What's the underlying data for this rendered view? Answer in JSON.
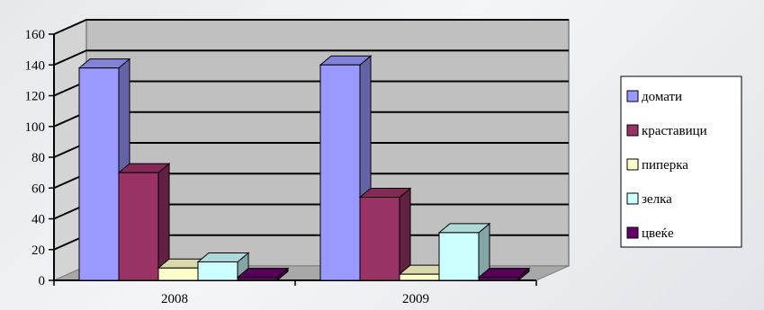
{
  "chart_data": {
    "type": "bar",
    "categories": [
      "2008",
      "2009"
    ],
    "series": [
      {
        "name": "домати",
        "values": [
          138,
          140
        ],
        "color": "#9999ff"
      },
      {
        "name": "краставици",
        "values": [
          70,
          54
        ],
        "color": "#993366"
      },
      {
        "name": "пиперка",
        "values": [
          8,
          4
        ],
        "color": "#ffffcc"
      },
      {
        "name": "зелка",
        "values": [
          12,
          31
        ],
        "color": "#ccffff"
      },
      {
        "name": "цвеќе",
        "values": [
          2,
          2
        ],
        "color": "#660066"
      }
    ],
    "title": "",
    "xlabel": "",
    "ylabel": "",
    "ylim": [
      0,
      160
    ],
    "yticks": [
      "0",
      "20",
      "40",
      "60",
      "80",
      "100",
      "120",
      "140",
      "160"
    ],
    "grid": true,
    "three_d": true,
    "legend_position": "right"
  }
}
